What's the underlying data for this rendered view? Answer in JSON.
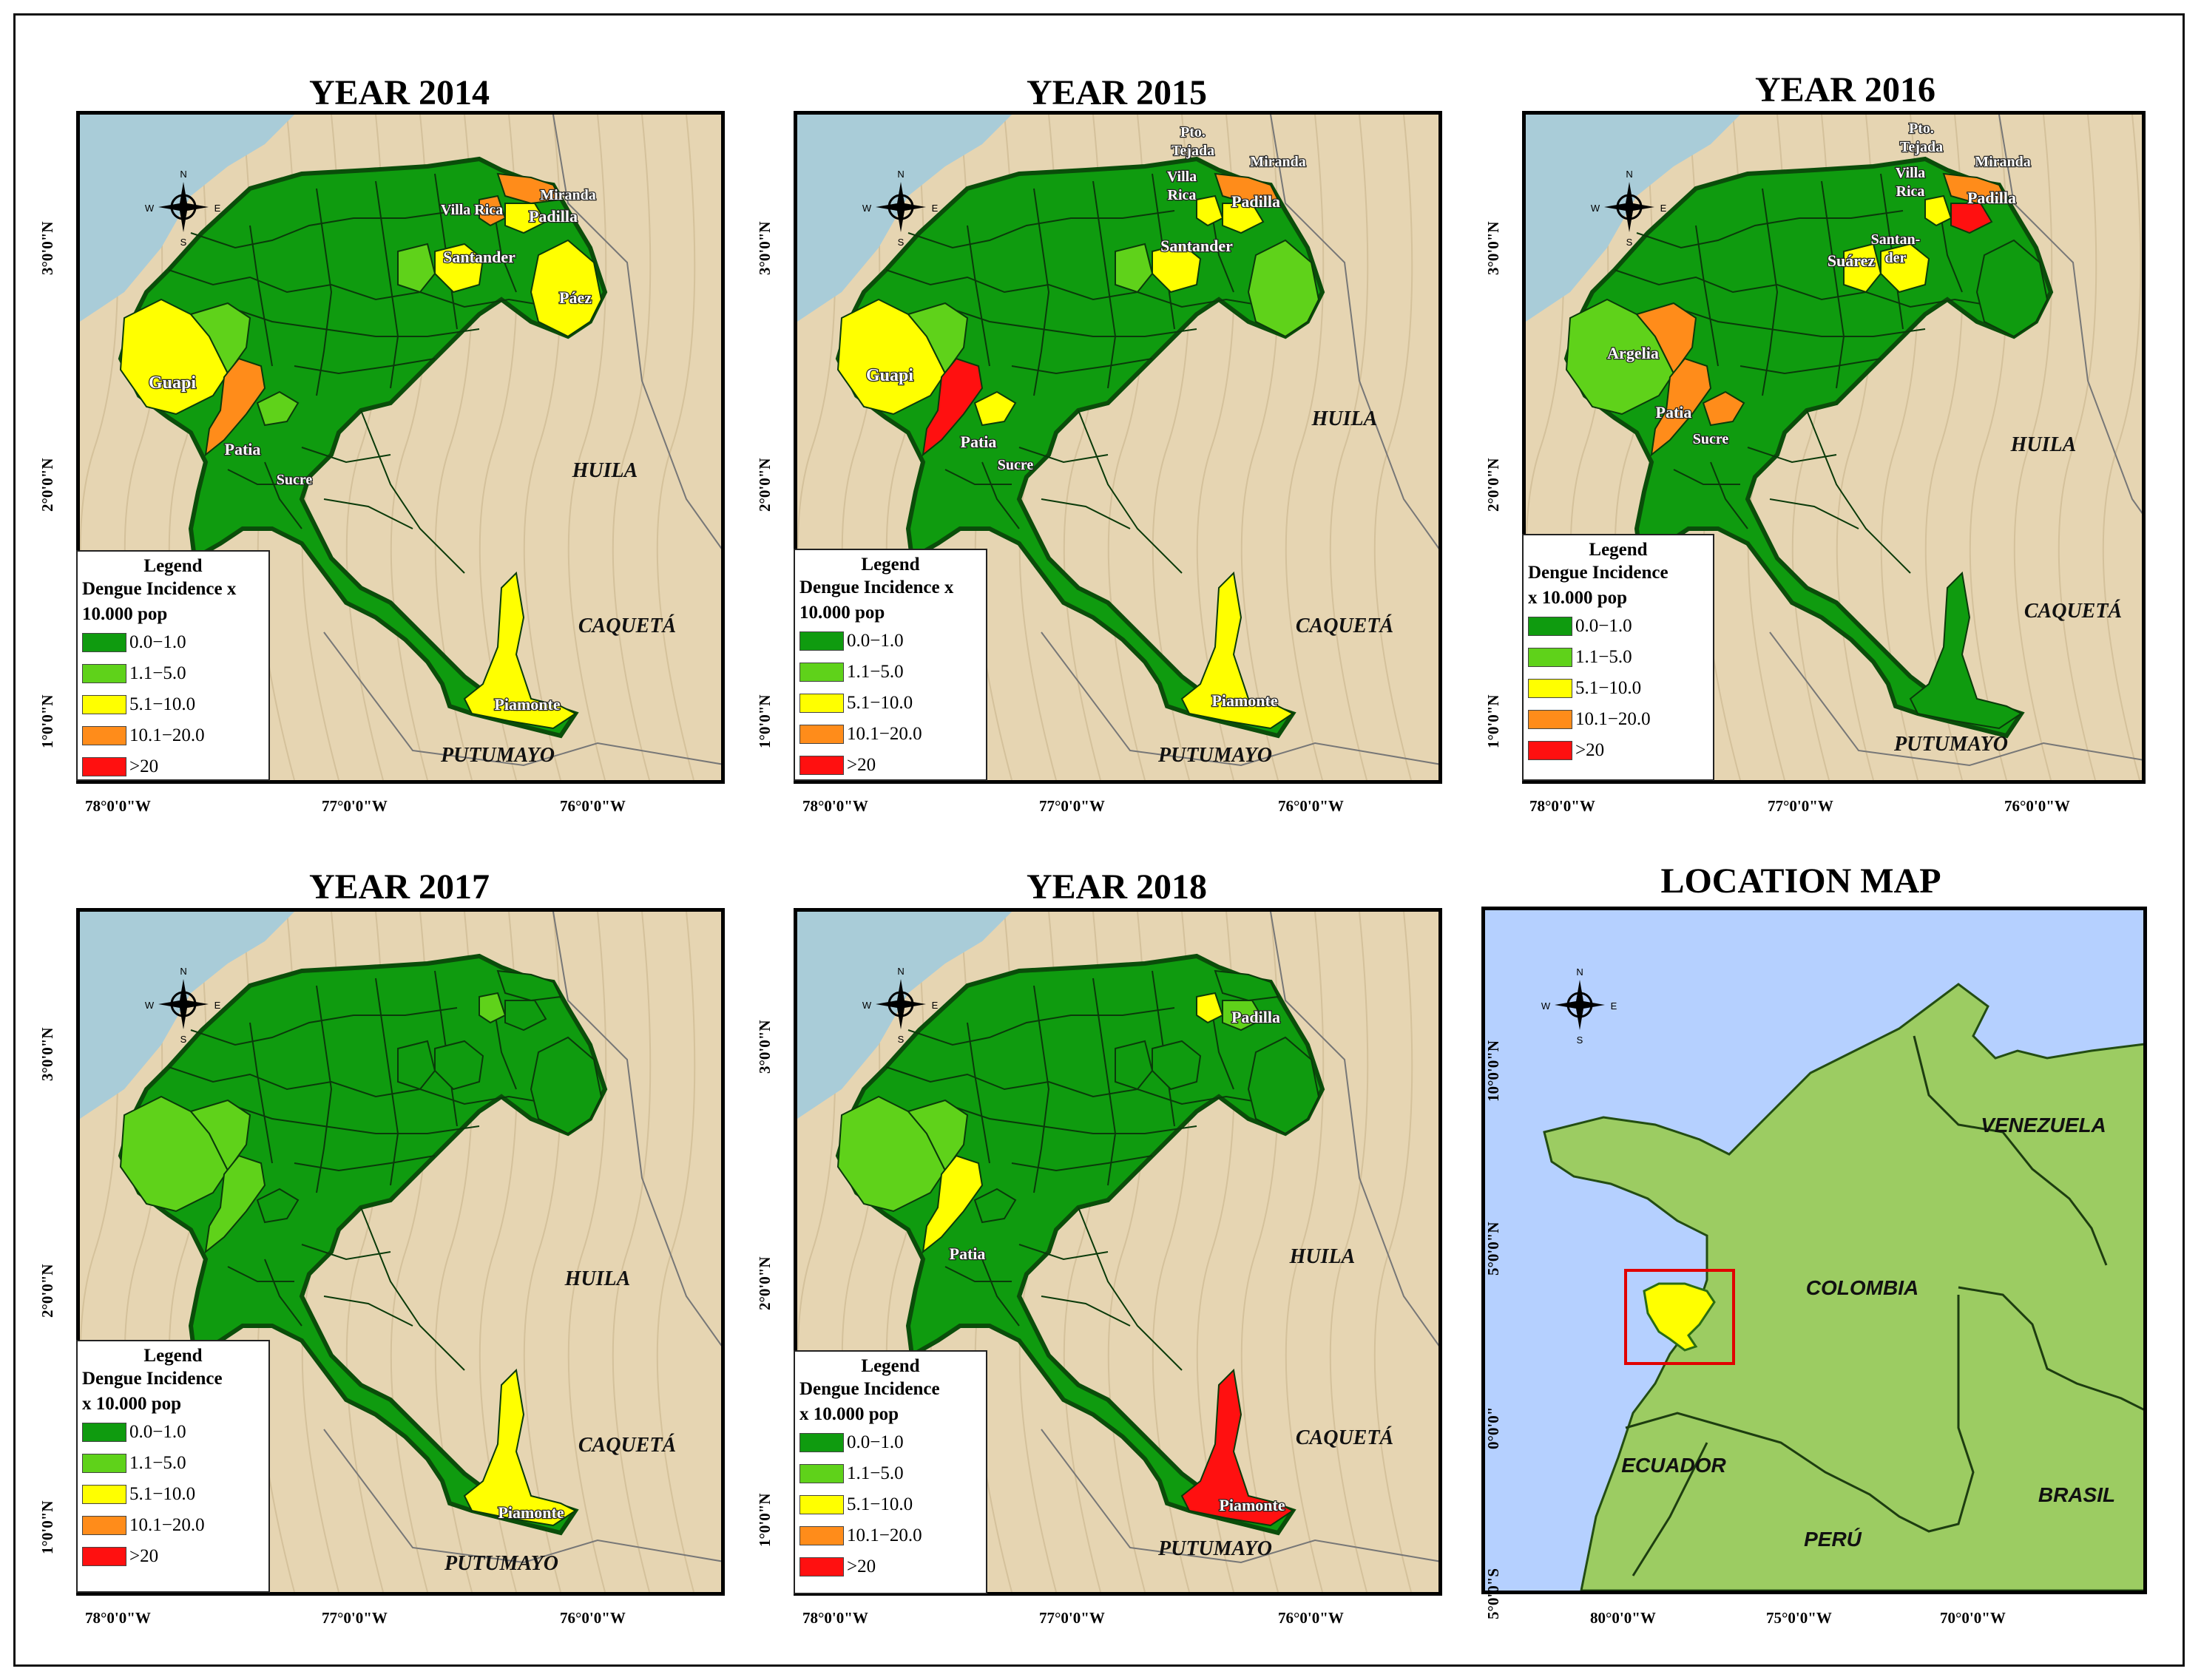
{
  "colors": {
    "c0": "#0f9b0f",
    "c1": "#5fd21a",
    "c2": "#ffff00",
    "c3": "#ff8c1a",
    "c4": "#ff1010",
    "sea": "#a9ccd8",
    "land": "#e6d5b2",
    "sea_loc": "#b5d0ff",
    "land_loc": "#9ccc62"
  },
  "compass": {
    "n": "N",
    "s": "S",
    "e": "E",
    "w": "W"
  },
  "legend": {
    "title": "Legend",
    "subtitle_a": "Dengue Incidence x",
    "subtitle_b": "10.000 pop",
    "subtitle_c": "Dengue Incidence",
    "subtitle_d": "x 10.000 pop",
    "classes": [
      "0.0−1.0",
      "1.1−5.0",
      "5.1−10.0",
      "10.1−20.0",
      ">20"
    ]
  },
  "axes": {
    "lon": [
      "78°0'0\"W",
      "77°0'0\"W",
      "76°0'0\"W"
    ],
    "lat": [
      "3°0'0\"N",
      "2°0'0\"N",
      "1°0'0\"N"
    ],
    "loc_lon": [
      "80°0'0\"W",
      "75°0'0\"W",
      "70°0'0\"W"
    ],
    "loc_lat": [
      "10°0'0\"N",
      "5°0'0\"N",
      "0°0'0\"",
      "5°0'0\"S"
    ]
  },
  "departments": {
    "huila": "HUILA",
    "caqueta": "CAQUETÁ",
    "putumayo": "PUTUMAYO"
  },
  "panels": [
    {
      "title": "YEAR 2014",
      "labels": {
        "guapi": "Guapi",
        "patia": "Patia",
        "sucre": "Sucre",
        "piamonte": "Piamonte",
        "santander": "Santander",
        "villarica": "Villa Rica",
        "miranda": "Miranda",
        "padilla": "Padilla",
        "paez": "Páez"
      }
    },
    {
      "title": "YEAR 2015",
      "labels": {
        "guapi": "Guapi",
        "patia": "Patia",
        "sucre": "Sucre",
        "piamonte": "Piamonte",
        "santander": "Santander",
        "villa": "Villa",
        "rica": "Rica",
        "pto": "Pto.",
        "tejada": "Tejada",
        "miranda": "Miranda",
        "padilla": "Padilla"
      }
    },
    {
      "title": "YEAR 2016",
      "labels": {
        "argelia": "Argelia",
        "patia": "Patia",
        "sucre": "Sucre",
        "suarez": "Suárez",
        "santan": "Santan-",
        "der": "der",
        "villa": "Villa",
        "rica": "Rica",
        "pto": "Pto.",
        "tejada": "Tejada",
        "miranda": "Miranda",
        "padilla": "Padilla"
      }
    },
    {
      "title": "YEAR 2017",
      "labels": {
        "piamonte": "Piamonte"
      }
    },
    {
      "title": "YEAR 2018",
      "labels": {
        "padilla": "Padilla",
        "patia": "Patia",
        "piamonte": "Piamonte"
      }
    },
    {
      "title": "LOCATION MAP",
      "labels": {
        "venezuela": "VENEZUELA",
        "colombia": "COLOMBIA",
        "ecuador": "ECUADOR",
        "peru": "PERÚ",
        "brasil": "BRASIL"
      }
    }
  ],
  "incidence_classes": {
    "2014": {
      "guapi": 2,
      "patia": 3,
      "sucre": 1,
      "piamonte": 2,
      "santander": 2,
      "paez": 2,
      "villarica": 3,
      "miranda": 3,
      "padilla": 2,
      "argelia": 1,
      "suarez": 1
    },
    "2015": {
      "guapi": 2,
      "patia": 4,
      "sucre": 2,
      "piamonte": 2,
      "santander": 2,
      "paez": 1,
      "villarica": 2,
      "miranda": 3,
      "padilla": 2,
      "argelia": 1,
      "suarez": 1
    },
    "2016": {
      "guapi": 1,
      "patia": 3,
      "sucre": 3,
      "piamonte": 0,
      "santander": 2,
      "paez": 0,
      "villarica": 2,
      "miranda": 3,
      "padilla": 4,
      "argelia": 3,
      "suarez": 2
    },
    "2017": {
      "guapi": 1,
      "patia": 1,
      "sucre": 0,
      "piamonte": 2,
      "santander": 0,
      "paez": 0,
      "villarica": 1,
      "miranda": 0,
      "padilla": 0,
      "argelia": 1,
      "suarez": 0
    },
    "2018": {
      "guapi": 1,
      "patia": 2,
      "sucre": 0,
      "piamonte": 4,
      "santander": 0,
      "paez": 0,
      "villarica": 2,
      "miranda": 0,
      "padilla": 1,
      "argelia": 1,
      "suarez": 0
    }
  }
}
